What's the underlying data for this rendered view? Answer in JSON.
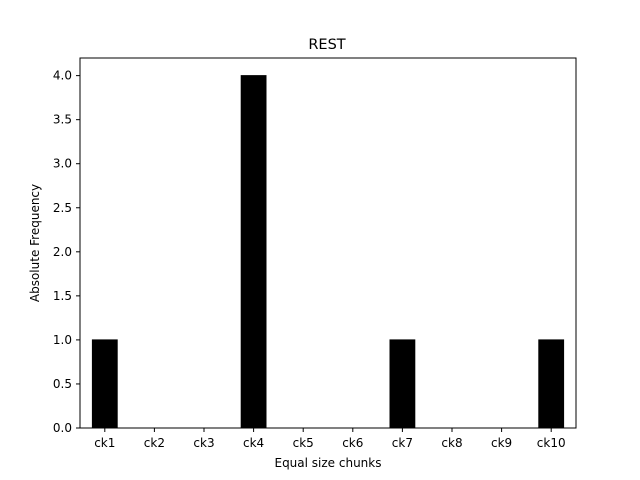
{
  "chart_data": {
    "type": "bar",
    "title": "REST",
    "xlabel": "Equal size chunks",
    "ylabel": "Absolute Frequency",
    "categories": [
      "ck1",
      "ck2",
      "ck3",
      "ck4",
      "ck5",
      "ck6",
      "ck7",
      "ck8",
      "ck9",
      "ck10"
    ],
    "values": [
      1,
      0,
      0,
      4,
      0,
      0,
      1,
      0,
      0,
      1
    ],
    "ylim": [
      0,
      4.2
    ],
    "yticks": [
      0.0,
      0.5,
      1.0,
      1.5,
      2.0,
      2.5,
      3.0,
      3.5,
      4.0
    ],
    "ytick_labels": [
      "0.0",
      "0.5",
      "1.0",
      "1.5",
      "2.0",
      "2.5",
      "3.0",
      "3.5",
      "4.0"
    ],
    "grid": false,
    "bar_color": "#000000"
  }
}
